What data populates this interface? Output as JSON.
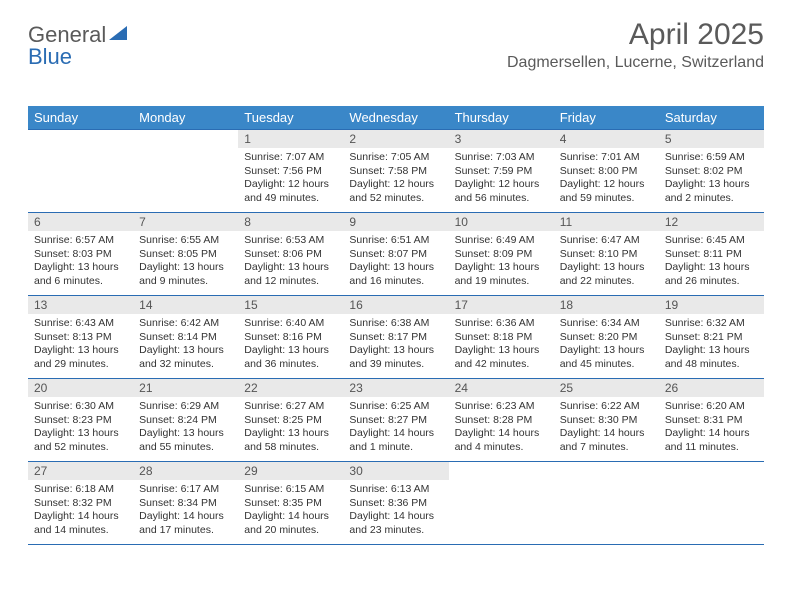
{
  "logo": {
    "text1": "General",
    "text2": "Blue"
  },
  "title": "April 2025",
  "subtitle": "Dagmersellen, Lucerne, Switzerland",
  "colors": {
    "header_bg": "#3a87c8",
    "header_text": "#ffffff",
    "cellhead_bg": "#e9e9e9",
    "cellhead_text": "#555555",
    "rule": "#2a6cb3",
    "body_text": "#333333",
    "title_text": "#5a5a5a",
    "logo_blue": "#2a6cb3"
  },
  "dayNames": [
    "Sunday",
    "Monday",
    "Tuesday",
    "Wednesday",
    "Thursday",
    "Friday",
    "Saturday"
  ],
  "weeks": [
    [
      {
        "empty": true
      },
      {
        "empty": true
      },
      {
        "n": "1",
        "sr": "Sunrise: 7:07 AM",
        "ss": "Sunset: 7:56 PM",
        "dl": "Daylight: 12 hours and 49 minutes."
      },
      {
        "n": "2",
        "sr": "Sunrise: 7:05 AM",
        "ss": "Sunset: 7:58 PM",
        "dl": "Daylight: 12 hours and 52 minutes."
      },
      {
        "n": "3",
        "sr": "Sunrise: 7:03 AM",
        "ss": "Sunset: 7:59 PM",
        "dl": "Daylight: 12 hours and 56 minutes."
      },
      {
        "n": "4",
        "sr": "Sunrise: 7:01 AM",
        "ss": "Sunset: 8:00 PM",
        "dl": "Daylight: 12 hours and 59 minutes."
      },
      {
        "n": "5",
        "sr": "Sunrise: 6:59 AM",
        "ss": "Sunset: 8:02 PM",
        "dl": "Daylight: 13 hours and 2 minutes."
      }
    ],
    [
      {
        "n": "6",
        "sr": "Sunrise: 6:57 AM",
        "ss": "Sunset: 8:03 PM",
        "dl": "Daylight: 13 hours and 6 minutes."
      },
      {
        "n": "7",
        "sr": "Sunrise: 6:55 AM",
        "ss": "Sunset: 8:05 PM",
        "dl": "Daylight: 13 hours and 9 minutes."
      },
      {
        "n": "8",
        "sr": "Sunrise: 6:53 AM",
        "ss": "Sunset: 8:06 PM",
        "dl": "Daylight: 13 hours and 12 minutes."
      },
      {
        "n": "9",
        "sr": "Sunrise: 6:51 AM",
        "ss": "Sunset: 8:07 PM",
        "dl": "Daylight: 13 hours and 16 minutes."
      },
      {
        "n": "10",
        "sr": "Sunrise: 6:49 AM",
        "ss": "Sunset: 8:09 PM",
        "dl": "Daylight: 13 hours and 19 minutes."
      },
      {
        "n": "11",
        "sr": "Sunrise: 6:47 AM",
        "ss": "Sunset: 8:10 PM",
        "dl": "Daylight: 13 hours and 22 minutes."
      },
      {
        "n": "12",
        "sr": "Sunrise: 6:45 AM",
        "ss": "Sunset: 8:11 PM",
        "dl": "Daylight: 13 hours and 26 minutes."
      }
    ],
    [
      {
        "n": "13",
        "sr": "Sunrise: 6:43 AM",
        "ss": "Sunset: 8:13 PM",
        "dl": "Daylight: 13 hours and 29 minutes."
      },
      {
        "n": "14",
        "sr": "Sunrise: 6:42 AM",
        "ss": "Sunset: 8:14 PM",
        "dl": "Daylight: 13 hours and 32 minutes."
      },
      {
        "n": "15",
        "sr": "Sunrise: 6:40 AM",
        "ss": "Sunset: 8:16 PM",
        "dl": "Daylight: 13 hours and 36 minutes."
      },
      {
        "n": "16",
        "sr": "Sunrise: 6:38 AM",
        "ss": "Sunset: 8:17 PM",
        "dl": "Daylight: 13 hours and 39 minutes."
      },
      {
        "n": "17",
        "sr": "Sunrise: 6:36 AM",
        "ss": "Sunset: 8:18 PM",
        "dl": "Daylight: 13 hours and 42 minutes."
      },
      {
        "n": "18",
        "sr": "Sunrise: 6:34 AM",
        "ss": "Sunset: 8:20 PM",
        "dl": "Daylight: 13 hours and 45 minutes."
      },
      {
        "n": "19",
        "sr": "Sunrise: 6:32 AM",
        "ss": "Sunset: 8:21 PM",
        "dl": "Daylight: 13 hours and 48 minutes."
      }
    ],
    [
      {
        "n": "20",
        "sr": "Sunrise: 6:30 AM",
        "ss": "Sunset: 8:23 PM",
        "dl": "Daylight: 13 hours and 52 minutes."
      },
      {
        "n": "21",
        "sr": "Sunrise: 6:29 AM",
        "ss": "Sunset: 8:24 PM",
        "dl": "Daylight: 13 hours and 55 minutes."
      },
      {
        "n": "22",
        "sr": "Sunrise: 6:27 AM",
        "ss": "Sunset: 8:25 PM",
        "dl": "Daylight: 13 hours and 58 minutes."
      },
      {
        "n": "23",
        "sr": "Sunrise: 6:25 AM",
        "ss": "Sunset: 8:27 PM",
        "dl": "Daylight: 14 hours and 1 minute."
      },
      {
        "n": "24",
        "sr": "Sunrise: 6:23 AM",
        "ss": "Sunset: 8:28 PM",
        "dl": "Daylight: 14 hours and 4 minutes."
      },
      {
        "n": "25",
        "sr": "Sunrise: 6:22 AM",
        "ss": "Sunset: 8:30 PM",
        "dl": "Daylight: 14 hours and 7 minutes."
      },
      {
        "n": "26",
        "sr": "Sunrise: 6:20 AM",
        "ss": "Sunset: 8:31 PM",
        "dl": "Daylight: 14 hours and 11 minutes."
      }
    ],
    [
      {
        "n": "27",
        "sr": "Sunrise: 6:18 AM",
        "ss": "Sunset: 8:32 PM",
        "dl": "Daylight: 14 hours and 14 minutes."
      },
      {
        "n": "28",
        "sr": "Sunrise: 6:17 AM",
        "ss": "Sunset: 8:34 PM",
        "dl": "Daylight: 14 hours and 17 minutes."
      },
      {
        "n": "29",
        "sr": "Sunrise: 6:15 AM",
        "ss": "Sunset: 8:35 PM",
        "dl": "Daylight: 14 hours and 20 minutes."
      },
      {
        "n": "30",
        "sr": "Sunrise: 6:13 AM",
        "ss": "Sunset: 8:36 PM",
        "dl": "Daylight: 14 hours and 23 minutes."
      },
      {
        "empty": true
      },
      {
        "empty": true
      },
      {
        "empty": true
      }
    ]
  ]
}
